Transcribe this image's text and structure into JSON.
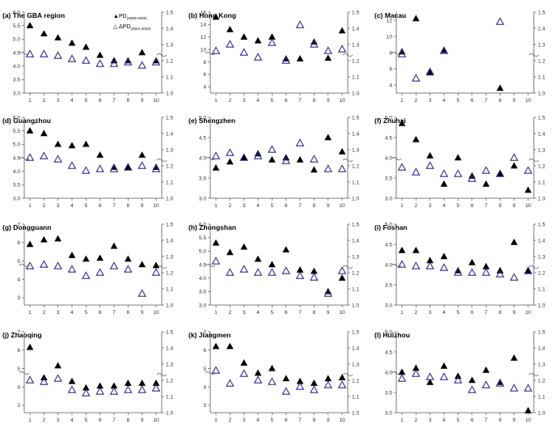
{
  "legend": {
    "pd_label": "PD",
    "pd_sub": "(2000-2020)",
    "dpd_label": "ΔPD",
    "dpd_sub": "(2001-2020)"
  },
  "colors": {
    "pd_fill": "#000000",
    "dpd_stroke": "#2e2e8f",
    "axis": "#555555"
  },
  "chart_data": [
    {
      "type": "scatter",
      "title": "(a) The GBA region",
      "x": [
        1,
        2,
        3,
        4,
        5,
        6,
        7,
        8,
        9,
        10
      ],
      "left_ylim": [
        3.0,
        6.0
      ],
      "left_ticks": [
        "3.0",
        "3.5",
        "4.0",
        "4.5",
        "5.0",
        "5.5",
        "6.0"
      ],
      "right_ylim": [
        1.0,
        1.5
      ],
      "right_ticks": [
        "1.0",
        "1.1",
        "1.2",
        "1.3",
        "1.4",
        "1.5"
      ],
      "series": [
        {
          "name": "PD(2000-2020)",
          "axis": "left",
          "values": [
            5.5,
            5.2,
            5.05,
            4.85,
            4.7,
            4.4,
            4.2,
            4.2,
            4.5,
            4.2
          ]
        },
        {
          "name": "ΔPD(2001-2020)",
          "axis": "right",
          "values": [
            1.24,
            1.24,
            1.23,
            1.21,
            1.2,
            1.18,
            1.18,
            1.19,
            1.17,
            1.19
          ]
        }
      ]
    },
    {
      "type": "scatter",
      "title": "(b) Hong Kong",
      "x": [
        1,
        2,
        3,
        4,
        5,
        6,
        7,
        8,
        9,
        10
      ],
      "left_ylim": [
        3,
        16
      ],
      "left_ticks": [
        "4",
        "6",
        "8",
        "10",
        "12",
        "14",
        "16"
      ],
      "right_ylim": [
        1.0,
        1.5
      ],
      "right_ticks": [
        "1.0",
        "1.1",
        "1.2",
        "1.3",
        "1.4",
        "1.5"
      ],
      "series": [
        {
          "name": "PD(2000-2020)",
          "axis": "left",
          "values": [
            15.2,
            13.2,
            12.0,
            11.4,
            12.0,
            8.5,
            8.5,
            11.2,
            8.6,
            13.0
          ]
        },
        {
          "name": "ΔPD(2001-2020)",
          "axis": "right",
          "values": [
            1.26,
            1.3,
            1.25,
            1.22,
            1.31,
            1.2,
            1.42,
            1.3,
            1.26,
            1.27
          ]
        }
      ]
    },
    {
      "type": "scatter",
      "title": "(c) Macau",
      "x": [
        1,
        2,
        3,
        4,
        5,
        6,
        7,
        8,
        9,
        10
      ],
      "left_ylim": [
        3,
        13
      ],
      "left_ticks": [
        "4",
        "6",
        "8",
        "10",
        "12"
      ],
      "right_ylim": [
        1.0,
        1.5
      ],
      "right_ticks": [
        "1.0",
        "1.1",
        "1.2",
        "1.3",
        "1.4",
        "1.5"
      ],
      "series": [
        {
          "name": "PD(2000-2020)",
          "axis": "left",
          "x": [
            1,
            2,
            3,
            4,
            8
          ],
          "values": [
            8.1,
            12.2,
            5.5,
            8.3,
            3.6
          ]
        },
        {
          "name": "ΔPD(2001-2020)",
          "axis": "right",
          "x": [
            1,
            2,
            3,
            4,
            8
          ],
          "values": [
            1.24,
            1.09,
            1.13,
            1.26,
            1.44
          ]
        }
      ]
    },
    {
      "type": "scatter",
      "title": "(d) Guangzhou",
      "x": [
        1,
        2,
        3,
        4,
        5,
        6,
        7,
        8,
        9,
        10
      ],
      "left_ylim": [
        3.0,
        6.0
      ],
      "left_ticks": [
        "3.0",
        "3.5",
        "4.0",
        "4.5",
        "5.0",
        "5.5",
        "6.0"
      ],
      "right_ylim": [
        1.0,
        1.5
      ],
      "right_ticks": [
        "1.0",
        "1.1",
        "1.2",
        "1.3",
        "1.4",
        "1.5"
      ],
      "series": [
        {
          "name": "PD(2000-2020)",
          "axis": "left",
          "values": [
            5.5,
            5.4,
            5.0,
            4.95,
            5.0,
            4.6,
            4.15,
            4.15,
            4.6,
            4.15
          ]
        },
        {
          "name": "ΔPD(2001-2020)",
          "axis": "right",
          "values": [
            1.25,
            1.26,
            1.24,
            1.2,
            1.17,
            1.18,
            1.18,
            1.19,
            1.2,
            1.18
          ]
        }
      ]
    },
    {
      "type": "scatter",
      "title": "(e) Shengzhen",
      "x": [
        1,
        2,
        3,
        4,
        5,
        6,
        7,
        8,
        9,
        10
      ],
      "left_ylim": [
        3.0,
        5.0
      ],
      "left_ticks": [
        "3.0",
        "3.5",
        "4.0",
        "4.5",
        "5.0"
      ],
      "right_ylim": [
        1.0,
        1.5
      ],
      "right_ticks": [
        "1.0",
        "1.1",
        "1.2",
        "1.3",
        "1.4",
        "1.5"
      ],
      "series": [
        {
          "name": "PD(2000-2020)",
          "axis": "left",
          "values": [
            3.75,
            3.9,
            4.0,
            4.1,
            3.95,
            4.0,
            3.95,
            3.7,
            4.5,
            4.15
          ]
        },
        {
          "name": "ΔPD(2001-2020)",
          "axis": "right",
          "values": [
            1.26,
            1.28,
            1.25,
            1.26,
            1.3,
            1.23,
            1.34,
            1.24,
            1.18,
            1.18
          ]
        }
      ]
    },
    {
      "type": "scatter",
      "title": "(f) Zhuhai",
      "x": [
        1,
        2,
        3,
        4,
        5,
        6,
        7,
        8,
        9,
        10
      ],
      "left_ylim": [
        3.0,
        5.0
      ],
      "left_ticks": [
        "3.0",
        "3.5",
        "4.0",
        "4.5",
        "5.0"
      ],
      "right_ylim": [
        1.0,
        1.5
      ],
      "right_ticks": [
        "1.0",
        "1.1",
        "1.2",
        "1.3",
        "1.4",
        "1.5"
      ],
      "series": [
        {
          "name": "PD(2000-2020)",
          "axis": "left",
          "values": [
            4.85,
            4.45,
            4.05,
            3.35,
            4.0,
            3.55,
            3.35,
            3.6,
            3.8,
            3.2
          ]
        },
        {
          "name": "ΔPD(2001-2020)",
          "axis": "right",
          "values": [
            1.19,
            1.16,
            1.2,
            1.15,
            1.15,
            1.12,
            1.17,
            1.15,
            1.25,
            1.17
          ]
        }
      ]
    },
    {
      "type": "scatter",
      "title": "(g) Dongguann",
      "x": [
        1,
        2,
        3,
        4,
        5,
        6,
        7,
        8,
        9,
        10
      ],
      "left_ylim": [
        2.6,
        7.0
      ],
      "left_ticks": [
        "3",
        "4",
        "5",
        "6",
        "7"
      ],
      "right_ylim": [
        1.0,
        1.5
      ],
      "right_ticks": [
        "1.0",
        "1.1",
        "1.2",
        "1.3",
        "1.4",
        "1.5"
      ],
      "series": [
        {
          "name": "PD(2000-2020)",
          "axis": "left",
          "values": [
            5.9,
            6.15,
            6.2,
            5.3,
            5.1,
            5.15,
            5.8,
            5.1,
            4.8,
            4.75
          ]
        },
        {
          "name": "ΔPD(2001-2020)",
          "axis": "right",
          "values": [
            1.24,
            1.25,
            1.24,
            1.22,
            1.18,
            1.2,
            1.24,
            1.22,
            1.07,
            1.2
          ]
        }
      ]
    },
    {
      "type": "scatter",
      "title": "(h) Zhongshan",
      "x": [
        1,
        2,
        3,
        4,
        5,
        6,
        7,
        8,
        9,
        10
      ],
      "left_ylim": [
        3.0,
        6.0
      ],
      "left_ticks": [
        "3.0",
        "3.5",
        "4.0",
        "4.5",
        "5.0",
        "5.5",
        "6.0"
      ],
      "right_ylim": [
        1.0,
        1.5
      ],
      "right_ticks": [
        "1.0",
        "1.1",
        "1.2",
        "1.3",
        "1.4",
        "1.5"
      ],
      "series": [
        {
          "name": "PD(2000-2020)",
          "axis": "left",
          "values": [
            5.3,
            4.95,
            5.15,
            4.7,
            4.5,
            5.05,
            4.3,
            4.25,
            3.5,
            4.0
          ]
        },
        {
          "name": "ΔPD(2001-2020)",
          "axis": "right",
          "values": [
            1.27,
            1.2,
            1.22,
            1.2,
            1.2,
            1.21,
            1.18,
            1.17,
            1.07,
            1.21
          ]
        }
      ]
    },
    {
      "type": "scatter",
      "title": "(i) Foshan",
      "x": [
        1,
        2,
        3,
        4,
        5,
        6,
        7,
        8,
        9,
        10
      ],
      "left_ylim": [
        3.0,
        5.0
      ],
      "left_ticks": [
        "3.0",
        "3.5",
        "4.0",
        "4.5",
        "5.0"
      ],
      "right_ylim": [
        1.0,
        1.5
      ],
      "right_ticks": [
        "1.0",
        "1.1",
        "1.2",
        "1.3",
        "1.4",
        "1.5"
      ],
      "series": [
        {
          "name": "PD(2000-2020)",
          "axis": "left",
          "values": [
            4.35,
            4.35,
            4.1,
            4.2,
            3.85,
            4.05,
            3.95,
            3.85,
            4.55,
            3.85
          ]
        },
        {
          "name": "ΔPD(2001-2020)",
          "axis": "right",
          "values": [
            1.25,
            1.24,
            1.24,
            1.23,
            1.2,
            1.2,
            1.2,
            1.19,
            1.17,
            1.21
          ]
        }
      ]
    },
    {
      "type": "scatter",
      "title": "(j) Zhaoqing",
      "x": [
        1,
        2,
        3,
        4,
        5,
        6,
        7,
        8,
        9,
        10
      ],
      "left_ylim": [
        2.6,
        7.0
      ],
      "left_ticks": [
        "3",
        "4",
        "5",
        "6",
        "7"
      ],
      "right_ylim": [
        1.0,
        1.5
      ],
      "right_ticks": [
        "1.0",
        "1.1",
        "1.2",
        "1.3",
        "1.4",
        "1.5"
      ],
      "series": [
        {
          "name": "PD(2000-2020)",
          "axis": "left",
          "values": [
            6.15,
            4.5,
            5.15,
            4.3,
            3.95,
            4.05,
            4.05,
            4.2,
            4.2,
            4.2
          ]
        },
        {
          "name": "ΔPD(2001-2020)",
          "axis": "right",
          "values": [
            1.2,
            1.19,
            1.21,
            1.14,
            1.12,
            1.13,
            1.13,
            1.14,
            1.14,
            1.15
          ]
        }
      ]
    },
    {
      "type": "scatter",
      "title": "(k) Jiangmen",
      "x": [
        1,
        2,
        3,
        4,
        5,
        6,
        7,
        8,
        9,
        10
      ],
      "left_ylim": [
        2.6,
        7.0
      ],
      "left_ticks": [
        "3",
        "4",
        "5",
        "6",
        "7"
      ],
      "right_ylim": [
        1.0,
        1.5
      ],
      "right_ticks": [
        "1.0",
        "1.1",
        "1.2",
        "1.3",
        "1.4",
        "1.5"
      ],
      "series": [
        {
          "name": "PD(2000-2020)",
          "axis": "left",
          "values": [
            6.2,
            6.2,
            5.3,
            4.75,
            5.0,
            4.45,
            4.3,
            4.2,
            4.45,
            4.5
          ]
        },
        {
          "name": "ΔPD(2001-2020)",
          "axis": "right",
          "values": [
            1.26,
            1.18,
            1.24,
            1.2,
            1.19,
            1.13,
            1.16,
            1.14,
            1.17,
            1.17
          ]
        }
      ]
    },
    {
      "type": "scatter",
      "title": "(l) Huizhou",
      "x": [
        1,
        2,
        3,
        4,
        5,
        6,
        7,
        8,
        9,
        10
      ],
      "left_ylim": [
        3.0,
        5.0
      ],
      "left_ticks": [
        "3.0",
        "3.5",
        "4.0",
        "4.5",
        "5.0"
      ],
      "right_ylim": [
        1.0,
        1.5
      ],
      "right_ticks": [
        "1.0",
        "1.1",
        "1.2",
        "1.3",
        "1.4",
        "1.5"
      ],
      "series": [
        {
          "name": "PD(2000-2020)",
          "axis": "left",
          "values": [
            4.0,
            4.1,
            3.75,
            4.15,
            3.9,
            3.8,
            4.05,
            3.75,
            4.35,
            3.05
          ]
        },
        {
          "name": "ΔPD(2001-2020)",
          "axis": "right",
          "values": [
            1.21,
            1.24,
            1.22,
            1.22,
            1.2,
            1.14,
            1.17,
            1.18,
            1.15,
            1.15
          ]
        }
      ]
    }
  ]
}
